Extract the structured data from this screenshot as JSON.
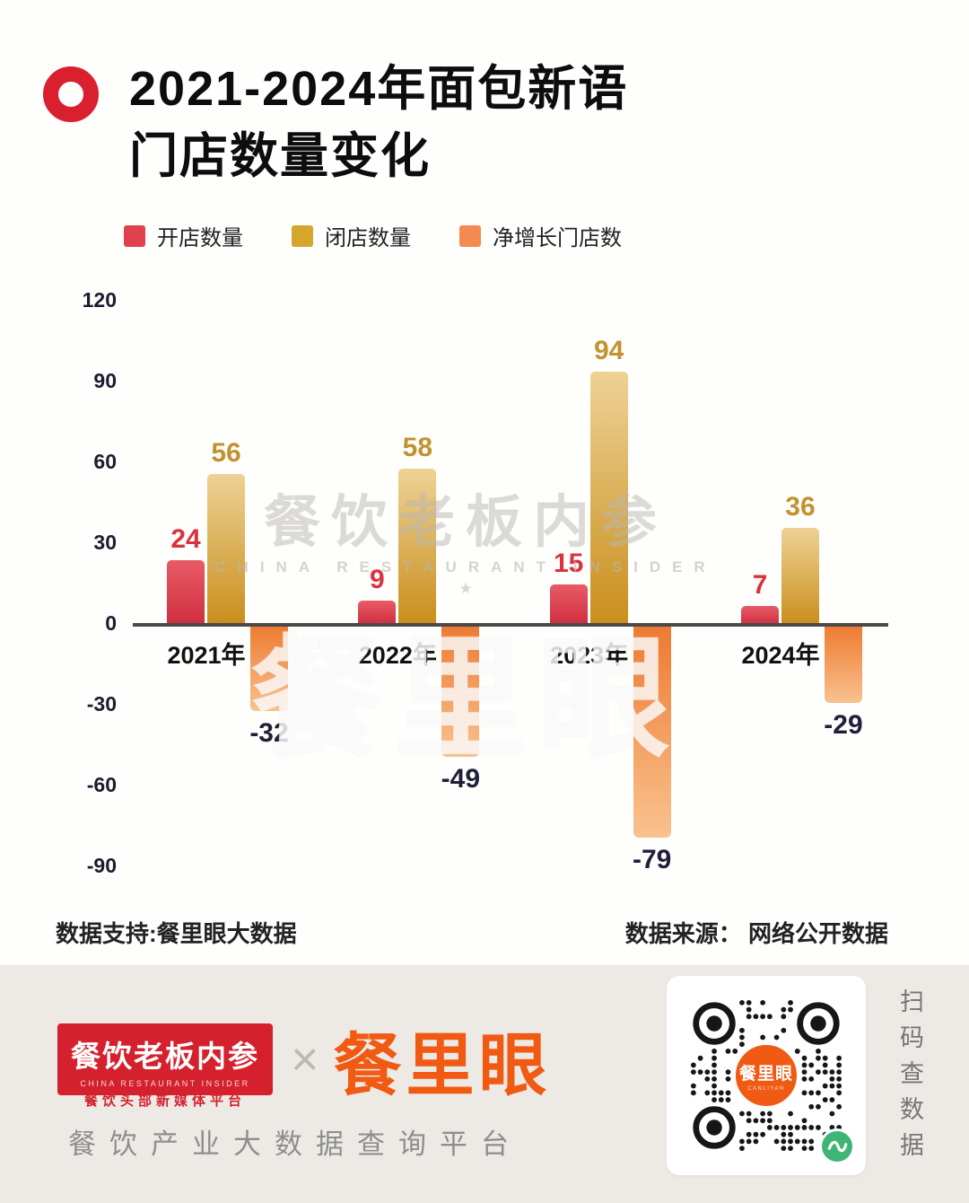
{
  "header": {
    "title_line1": "2021-2024年面包新语",
    "title_line2": "门店数量变化"
  },
  "legend": [
    {
      "label": "开店数量",
      "color": "#e1404e"
    },
    {
      "label": "闭店数量",
      "color": "#d4a62a"
    },
    {
      "label": "净增长门店数",
      "color": "#f28a52"
    }
  ],
  "chart_data": {
    "type": "bar",
    "title": "2021-2024年面包新语门店数量变化",
    "categories": [
      "2021年",
      "2022年",
      "2023年",
      "2024年"
    ],
    "series": [
      {
        "name": "开店数量",
        "values": [
          24,
          9,
          15,
          7
        ],
        "color": "#d9404f"
      },
      {
        "name": "闭店数量",
        "values": [
          56,
          58,
          94,
          36
        ],
        "color": "#d0a12c"
      },
      {
        "name": "净增长门店数",
        "values": [
          -32,
          -49,
          -79,
          -29
        ],
        "color": "#f2854d"
      }
    ],
    "yticks": [
      120,
      90,
      60,
      30,
      0,
      -30,
      -60,
      -90
    ],
    "ylim": [
      -100,
      130
    ],
    "grid": false,
    "legend_position": "top",
    "xlabel": "",
    "ylabel": ""
  },
  "watermark": {
    "line1": "餐饮老板内参",
    "line2": "CHINA RESTAURANT INSIDER",
    "star": "★",
    "big": "餐里眼"
  },
  "notes": {
    "left": "数据支持:餐里眼大数据",
    "right": "数据来源： 网络公开数据"
  },
  "branding": {
    "insider_cn": "餐饮老板内参",
    "insider_en": "CHINA RESTAURANT INSIDER",
    "insider_tagline": "餐饮头部新媒体平台",
    "separator": "×",
    "canliyan_cn": "餐里眼",
    "platform_tagline": "餐饮产业大数据查询平台",
    "qr_center_cn": "餐里眼",
    "qr_center_en": "CANLIYAN",
    "scan_text": "扫码查数据"
  },
  "colors": {
    "open_red": "#d9404f",
    "close_gold": "#d0a12c",
    "net_orange": "#f2854d",
    "brand_orange": "#f05a12",
    "insider_red": "#d5212e",
    "footer_bg": "#edeae6"
  }
}
